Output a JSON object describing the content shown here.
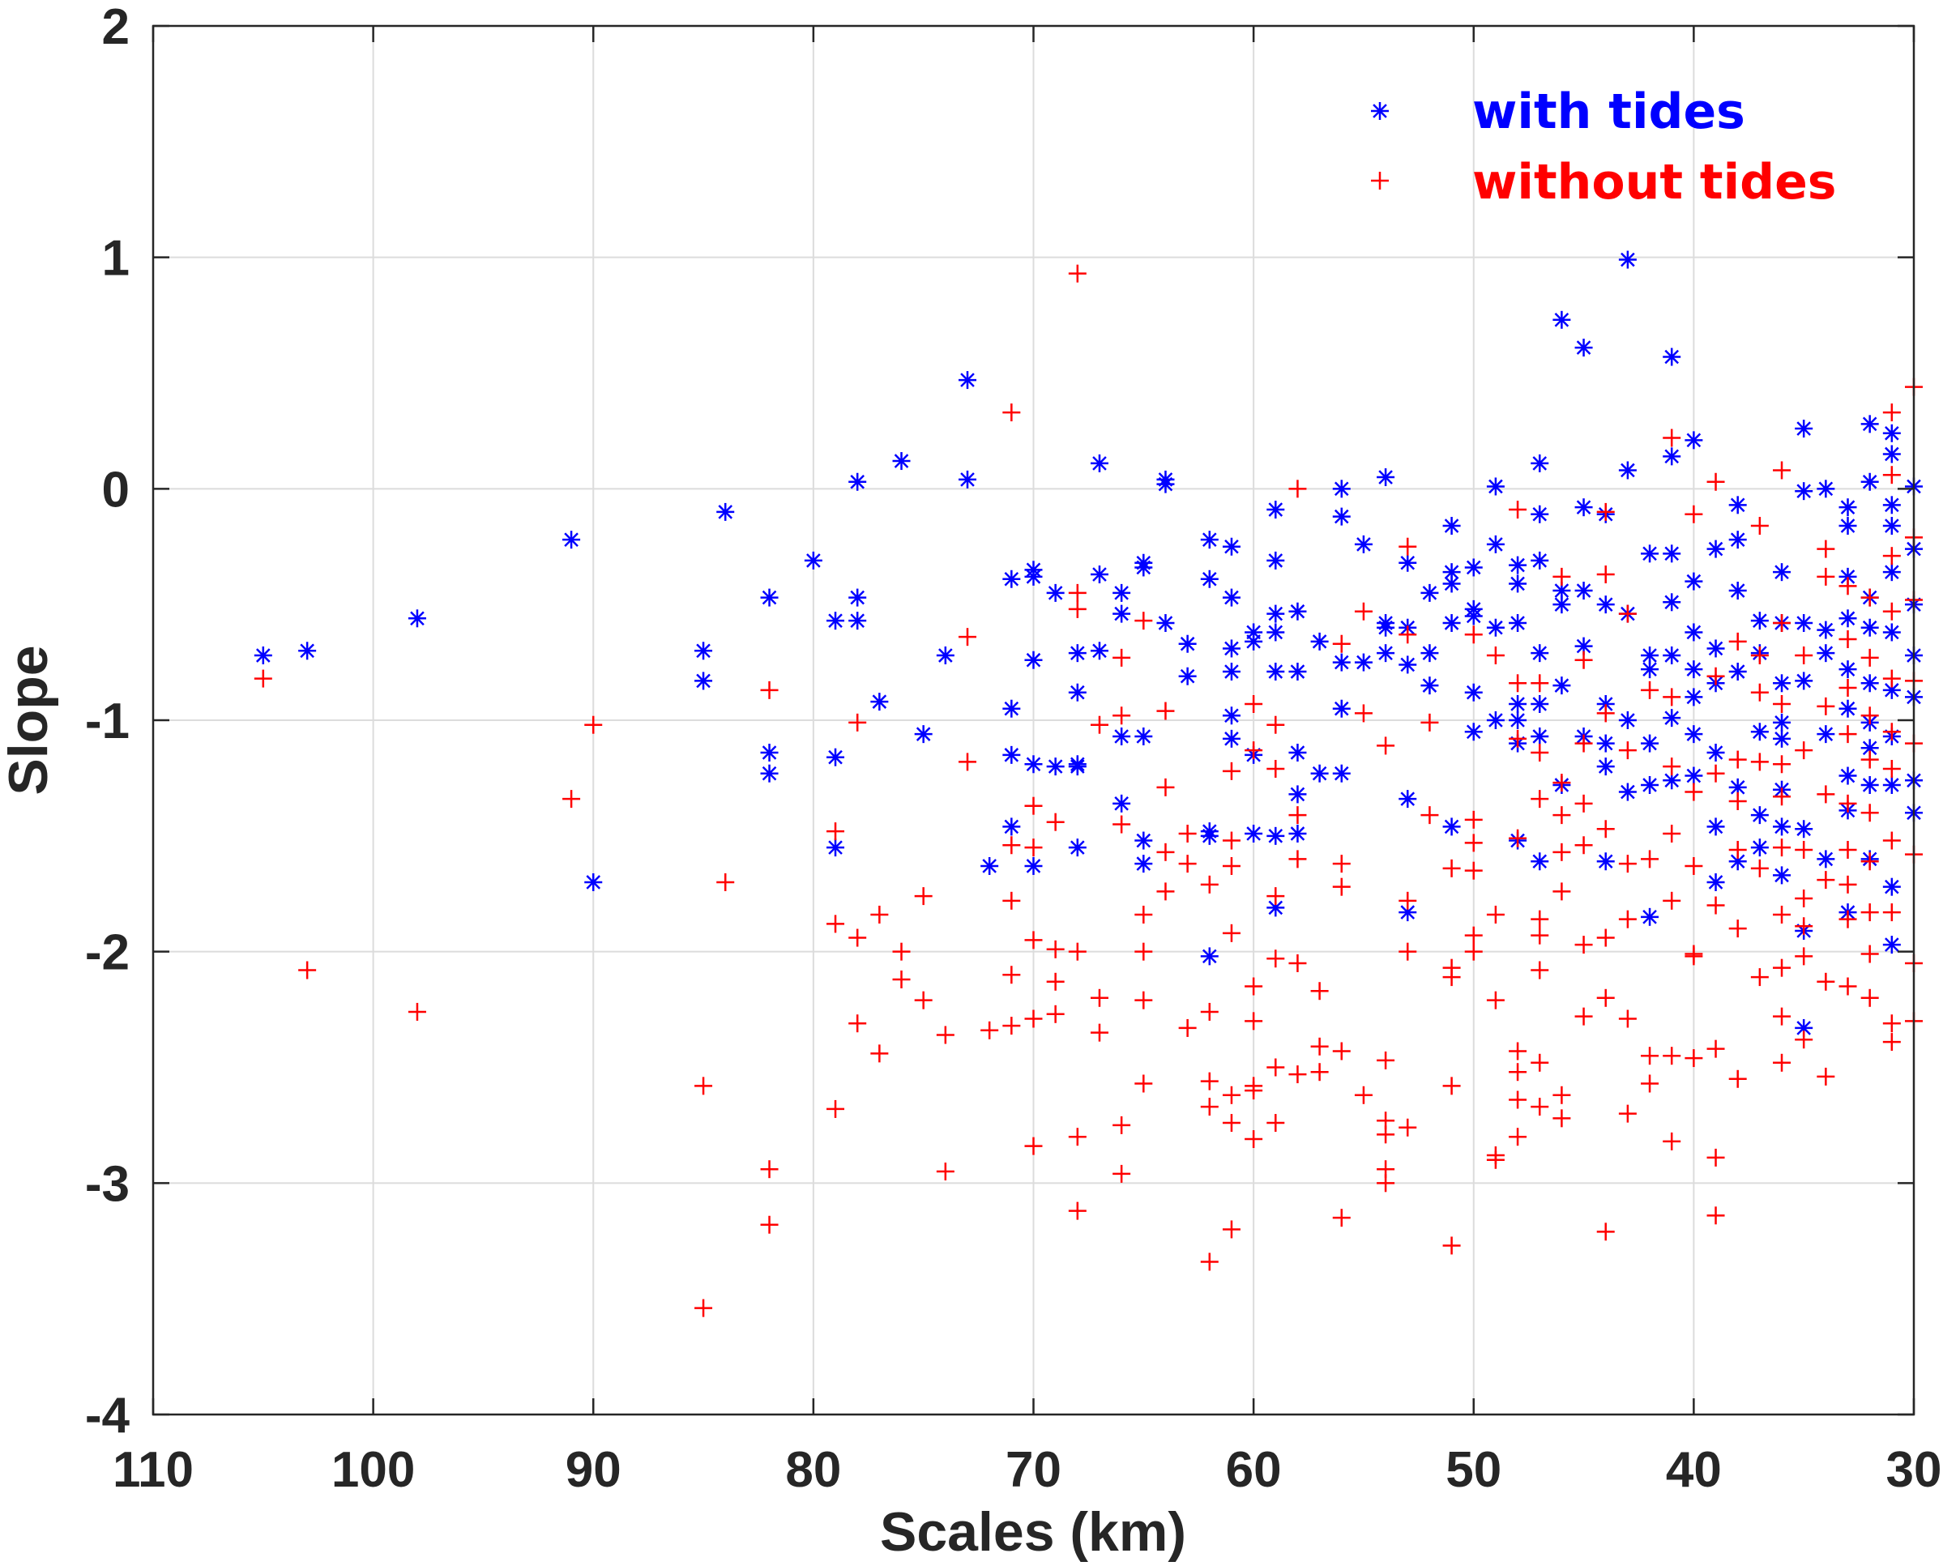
{
  "chart_data": {
    "type": "scatter",
    "title": "",
    "xlabel": "Scales (km)",
    "ylabel": "Slope",
    "xlim": [
      110,
      30
    ],
    "ylim": [
      -4,
      2
    ],
    "x_reversed": true,
    "grid": true,
    "x_ticks": [
      "110",
      "100",
      "90",
      "80",
      "70",
      "60",
      "50",
      "40",
      "30"
    ],
    "y_ticks": [
      "-4",
      "-3",
      "-2",
      "-1",
      "0",
      "1",
      "2"
    ],
    "legend": {
      "placement": "top-right"
    },
    "series": [
      {
        "name": "with tides",
        "color": "#0000ff",
        "marker": "asterisk",
        "x": [
          105,
          103,
          98,
          91,
          90,
          85,
          85,
          84,
          82,
          82,
          82,
          80,
          79,
          79,
          79,
          78,
          78,
          78,
          77,
          76,
          75,
          74,
          73,
          73,
          72,
          71,
          71,
          71,
          71,
          70,
          70,
          70,
          70,
          70,
          69,
          69,
          68,
          68,
          68,
          68,
          68,
          67,
          67,
          67,
          66,
          66,
          66,
          66,
          65,
          65,
          65,
          65,
          65,
          64,
          64,
          64,
          63,
          63,
          62,
          62,
          62,
          62,
          62,
          61,
          61,
          61,
          61,
          61,
          61,
          60,
          60,
          60,
          60,
          59,
          59,
          59,
          59,
          59,
          59,
          59,
          58,
          58,
          58,
          58,
          58,
          57,
          57,
          56,
          56,
          56,
          56,
          56,
          55,
          55,
          54,
          54,
          54,
          54,
          53,
          53,
          53,
          53,
          53,
          52,
          52,
          52,
          51,
          51,
          51,
          51,
          51,
          50,
          50,
          50,
          50,
          50,
          49,
          49,
          49,
          49,
          48,
          48,
          48,
          48,
          48,
          48,
          48,
          47,
          47,
          47,
          47,
          47,
          47,
          47,
          46,
          46,
          46,
          46,
          46,
          45,
          45,
          45,
          45,
          45,
          44,
          44,
          44,
          44,
          44,
          44,
          43,
          43,
          43,
          43,
          43,
          42,
          42,
          42,
          42,
          42,
          42,
          41,
          41,
          41,
          41,
          41,
          41,
          41,
          40,
          40,
          40,
          40,
          40,
          40,
          40,
          39,
          39,
          39,
          39,
          39,
          39,
          38,
          38,
          38,
          38,
          38,
          38,
          37,
          37,
          37,
          37,
          37,
          36,
          36,
          36,
          36,
          36,
          36,
          36,
          36,
          35,
          35,
          35,
          35,
          35,
          35,
          35,
          34,
          34,
          34,
          34,
          34,
          33,
          33,
          33,
          33,
          33,
          33,
          33,
          33,
          33,
          32,
          32,
          32,
          32,
          32,
          32,
          32,
          32,
          32,
          31,
          31,
          31,
          31,
          31,
          31,
          31,
          31,
          31,
          31,
          31,
          30,
          30,
          30,
          30,
          30,
          30,
          30
        ],
        "y": [
          -0.72,
          -0.7,
          -0.56,
          -0.22,
          -1.7,
          -0.7,
          -0.83,
          -0.1,
          -0.47,
          -1.14,
          -1.23,
          -0.31,
          -0.57,
          -1.16,
          -1.55,
          -0.47,
          -0.57,
          0.03,
          -0.92,
          0.12,
          -1.06,
          -0.72,
          0.47,
          0.04,
          -1.63,
          -0.39,
          -0.95,
          -1.15,
          -1.46,
          -0.35,
          -0.38,
          -0.74,
          -1.19,
          -1.63,
          -0.45,
          -1.2,
          -0.88,
          -0.71,
          -1.19,
          -1.55,
          -1.2,
          0.11,
          -0.37,
          -0.7,
          -0.45,
          -0.54,
          -1.07,
          -1.36,
          -0.32,
          -0.34,
          -1.07,
          -1.52,
          -1.62,
          0.02,
          0.04,
          -0.58,
          -0.67,
          -0.81,
          -0.22,
          -0.39,
          -1.48,
          -1.5,
          -2.02,
          -0.25,
          -0.47,
          -0.69,
          -0.79,
          -0.98,
          -1.08,
          -0.62,
          -0.66,
          -1.15,
          -1.49,
          -0.09,
          -0.31,
          -0.54,
          -0.62,
          -0.79,
          -1.5,
          -1.81,
          -0.53,
          -0.79,
          -1.14,
          -1.32,
          -1.49,
          -0.66,
          -1.23,
          0.0,
          -0.12,
          -0.75,
          -0.95,
          -1.23,
          -0.24,
          -0.75,
          0.05,
          -0.58,
          -0.71,
          -0.6,
          -0.32,
          -0.6,
          -0.76,
          -1.34,
          -1.83,
          -0.45,
          -0.71,
          -0.85,
          -0.16,
          -0.36,
          -0.41,
          -0.58,
          -1.46,
          -0.34,
          -0.52,
          -0.55,
          -0.88,
          -1.05,
          0.01,
          -0.24,
          -0.6,
          -1.0,
          -0.33,
          -0.41,
          -0.58,
          -0.93,
          -1.0,
          -1.1,
          -1.52,
          0.11,
          -0.11,
          -0.31,
          -0.71,
          -0.93,
          -1.07,
          -1.61,
          0.73,
          -0.44,
          -0.5,
          -0.85,
          -1.28,
          0.61,
          -0.08,
          -0.44,
          -0.68,
          -1.07,
          -0.11,
          -0.5,
          -0.93,
          -1.1,
          -1.2,
          -1.61,
          0.99,
          0.08,
          -0.54,
          -1.0,
          -1.31,
          -0.28,
          -0.72,
          -0.78,
          -1.1,
          -1.28,
          -1.85,
          0.57,
          0.14,
          -0.28,
          -0.49,
          -0.72,
          -0.99,
          -1.26,
          0.21,
          -0.4,
          -0.62,
          -0.78,
          -0.9,
          -1.06,
          -1.24,
          -0.26,
          -0.69,
          -0.84,
          -1.14,
          -1.46,
          -1.7,
          -0.07,
          -0.22,
          -0.44,
          -0.79,
          -1.29,
          -1.61,
          -0.57,
          -0.71,
          -1.05,
          -1.41,
          -1.55,
          -0.36,
          -0.58,
          -0.84,
          -1.01,
          -1.08,
          -1.3,
          -1.46,
          -1.67,
          0.26,
          -0.01,
          -0.58,
          -0.83,
          -1.47,
          -1.91,
          -2.33,
          0.0,
          -0.61,
          -0.71,
          -1.06,
          -1.6,
          -0.08,
          -0.16,
          -0.38,
          -0.56,
          -0.78,
          -0.95,
          -1.24,
          -1.39,
          -1.83,
          0.28,
          0.03,
          -0.47,
          -0.6,
          -0.84,
          -1.01,
          -1.12,
          -1.28,
          -1.6,
          0.24,
          0.15,
          -0.07,
          -0.16,
          -0.36,
          -0.62,
          -0.87,
          -1.07,
          -1.28,
          -1.72,
          -1.97,
          0.01,
          -0.26,
          -0.5,
          -0.72,
          -0.9,
          -1.26,
          -1.4
        ]
      },
      {
        "name": "without tides",
        "color": "#ff0000",
        "marker": "plus",
        "x": [
          105,
          103,
          98,
          91,
          90,
          85,
          85,
          84,
          82,
          82,
          82,
          79,
          79,
          79,
          78,
          78,
          78,
          77,
          77,
          76,
          76,
          75,
          75,
          74,
          74,
          73,
          73,
          72,
          71,
          71,
          71,
          71,
          71,
          70,
          70,
          70,
          70,
          70,
          69,
          69,
          69,
          69,
          68,
          68,
          68,
          68,
          68,
          68,
          67,
          67,
          67,
          66,
          66,
          66,
          66,
          66,
          65,
          65,
          65,
          65,
          65,
          64,
          64,
          64,
          64,
          63,
          63,
          63,
          62,
          62,
          62,
          62,
          62,
          61,
          61,
          61,
          61,
          61,
          61,
          61,
          60,
          60,
          60,
          60,
          60,
          60,
          60,
          59,
          59,
          59,
          59,
          59,
          59,
          58,
          58,
          58,
          58,
          58,
          57,
          57,
          57,
          56,
          56,
          56,
          56,
          56,
          55,
          55,
          55,
          54,
          54,
          54,
          54,
          54,
          54,
          53,
          53,
          53,
          53,
          53,
          52,
          52,
          51,
          51,
          51,
          51,
          51,
          50,
          50,
          50,
          50,
          50,
          50,
          49,
          49,
          49,
          49,
          49,
          48,
          48,
          48,
          48,
          48,
          48,
          48,
          48,
          47,
          47,
          47,
          47,
          47,
          47,
          47,
          47,
          46,
          46,
          46,
          46,
          46,
          46,
          46,
          45,
          45,
          45,
          45,
          45,
          45,
          44,
          44,
          44,
          44,
          44,
          44,
          44,
          43,
          43,
          43,
          43,
          43,
          43,
          42,
          42,
          42,
          42,
          41,
          41,
          41,
          41,
          41,
          41,
          41,
          40,
          40,
          40,
          40,
          40,
          40,
          39,
          39,
          39,
          39,
          39,
          39,
          39,
          38,
          38,
          38,
          38,
          38,
          38,
          37,
          37,
          37,
          37,
          37,
          37,
          36,
          36,
          36,
          36,
          36,
          36,
          36,
          36,
          36,
          36,
          35,
          35,
          35,
          35,
          35,
          35,
          35,
          34,
          34,
          34,
          34,
          34,
          34,
          34,
          33,
          33,
          33,
          33,
          33,
          33,
          33,
          33,
          33,
          32,
          32,
          32,
          32,
          32,
          32,
          32,
          32,
          32,
          31,
          31,
          31,
          31,
          31,
          31,
          31,
          31,
          31,
          31,
          31,
          30,
          30,
          30,
          30,
          30,
          30,
          30,
          30
        ],
        "y": [
          -0.82,
          -2.08,
          -2.26,
          -1.34,
          -1.02,
          -2.58,
          -3.54,
          -1.7,
          -0.87,
          -2.94,
          -3.18,
          -1.48,
          -1.88,
          -2.68,
          -1.01,
          -1.94,
          -2.31,
          -1.84,
          -2.44,
          -2.0,
          -2.12,
          -1.76,
          -2.21,
          -2.36,
          -2.95,
          -0.64,
          -1.18,
          -2.34,
          0.33,
          -1.54,
          -1.78,
          -2.1,
          -2.32,
          -1.37,
          -1.55,
          -1.95,
          -2.29,
          -2.84,
          -1.44,
          -1.99,
          -2.13,
          -2.27,
          -0.45,
          -0.52,
          -2.0,
          -2.8,
          -3.12,
          0.93,
          -1.02,
          -2.2,
          -2.35,
          -0.73,
          -0.98,
          -1.45,
          -2.75,
          -2.96,
          -0.57,
          -1.84,
          -2.0,
          -2.21,
          -2.57,
          -0.96,
          -1.29,
          -1.57,
          -1.74,
          -1.49,
          -1.62,
          -2.33,
          -1.71,
          -2.26,
          -2.56,
          -2.67,
          -3.34,
          -1.22,
          -1.52,
          -1.63,
          -1.92,
          -2.62,
          -2.74,
          -3.2,
          -0.93,
          -1.13,
          -2.15,
          -2.3,
          -2.58,
          -2.81,
          -2.6,
          -1.02,
          -1.21,
          -1.76,
          -2.03,
          -2.5,
          -2.74,
          0.0,
          -1.41,
          -1.6,
          -2.05,
          -2.53,
          -2.17,
          -2.41,
          -2.52,
          -0.67,
          -1.62,
          -1.72,
          -2.43,
          -3.15,
          -0.53,
          -0.97,
          -2.62,
          -1.11,
          -2.47,
          -2.73,
          -2.79,
          -2.94,
          -3.0,
          -0.25,
          -0.63,
          -1.78,
          -2.0,
          -2.76,
          -1.01,
          -1.41,
          -1.64,
          -2.07,
          -2.11,
          -2.58,
          -3.27,
          -0.63,
          -1.43,
          -1.53,
          -1.65,
          -1.93,
          -2.0,
          -0.72,
          -1.84,
          -2.21,
          -2.88,
          -2.9,
          -0.09,
          -0.84,
          -1.08,
          -1.51,
          -2.43,
          -2.52,
          -2.64,
          -2.8,
          -0.84,
          -1.14,
          -1.34,
          -1.86,
          -1.93,
          -2.08,
          -2.48,
          -2.67,
          -0.38,
          -1.27,
          -1.41,
          -1.57,
          -1.74,
          -2.62,
          -2.72,
          -0.74,
          -1.1,
          -1.36,
          -1.54,
          -1.97,
          -2.28,
          -0.1,
          -0.37,
          -0.97,
          -1.47,
          -1.94,
          -2.2,
          -3.21,
          -0.54,
          -1.13,
          -1.62,
          -1.86,
          -2.29,
          -2.7,
          -0.87,
          -1.6,
          -2.57,
          -2.45,
          0.22,
          -0.9,
          -1.2,
          -1.49,
          -1.78,
          -2.45,
          -2.82,
          -0.11,
          -1.31,
          -1.63,
          -2.01,
          -2.02,
          -2.46,
          0.03,
          -0.81,
          -1.23,
          -1.8,
          -2.42,
          -2.89,
          -3.14,
          -0.66,
          -1.17,
          -1.35,
          -1.56,
          -1.9,
          -2.55,
          -0.16,
          -0.72,
          -0.88,
          -1.18,
          -1.64,
          -2.11,
          0.08,
          -0.58,
          -0.93,
          -1.19,
          -1.33,
          -1.55,
          -1.84,
          -2.07,
          -2.28,
          -2.48,
          -0.72,
          -1.13,
          -1.56,
          -1.77,
          -1.89,
          -2.02,
          -2.38,
          -0.26,
          -0.38,
          -0.94,
          -1.32,
          -1.69,
          -2.13,
          -2.54,
          -0.42,
          -0.65,
          -0.86,
          -1.06,
          -1.36,
          -1.56,
          -1.71,
          -1.86,
          -2.15,
          -0.47,
          -0.73,
          -0.98,
          -1.17,
          -1.4,
          -1.61,
          -1.83,
          -2.01,
          -2.2,
          0.33,
          0.06,
          -0.29,
          -0.53,
          -0.82,
          -1.05,
          -1.21,
          -1.52,
          -1.83,
          -2.31,
          -2.39,
          0.44,
          -0.21,
          -0.48,
          -0.83,
          -1.1,
          -1.58,
          -2.05,
          -2.3
        ]
      }
    ]
  }
}
